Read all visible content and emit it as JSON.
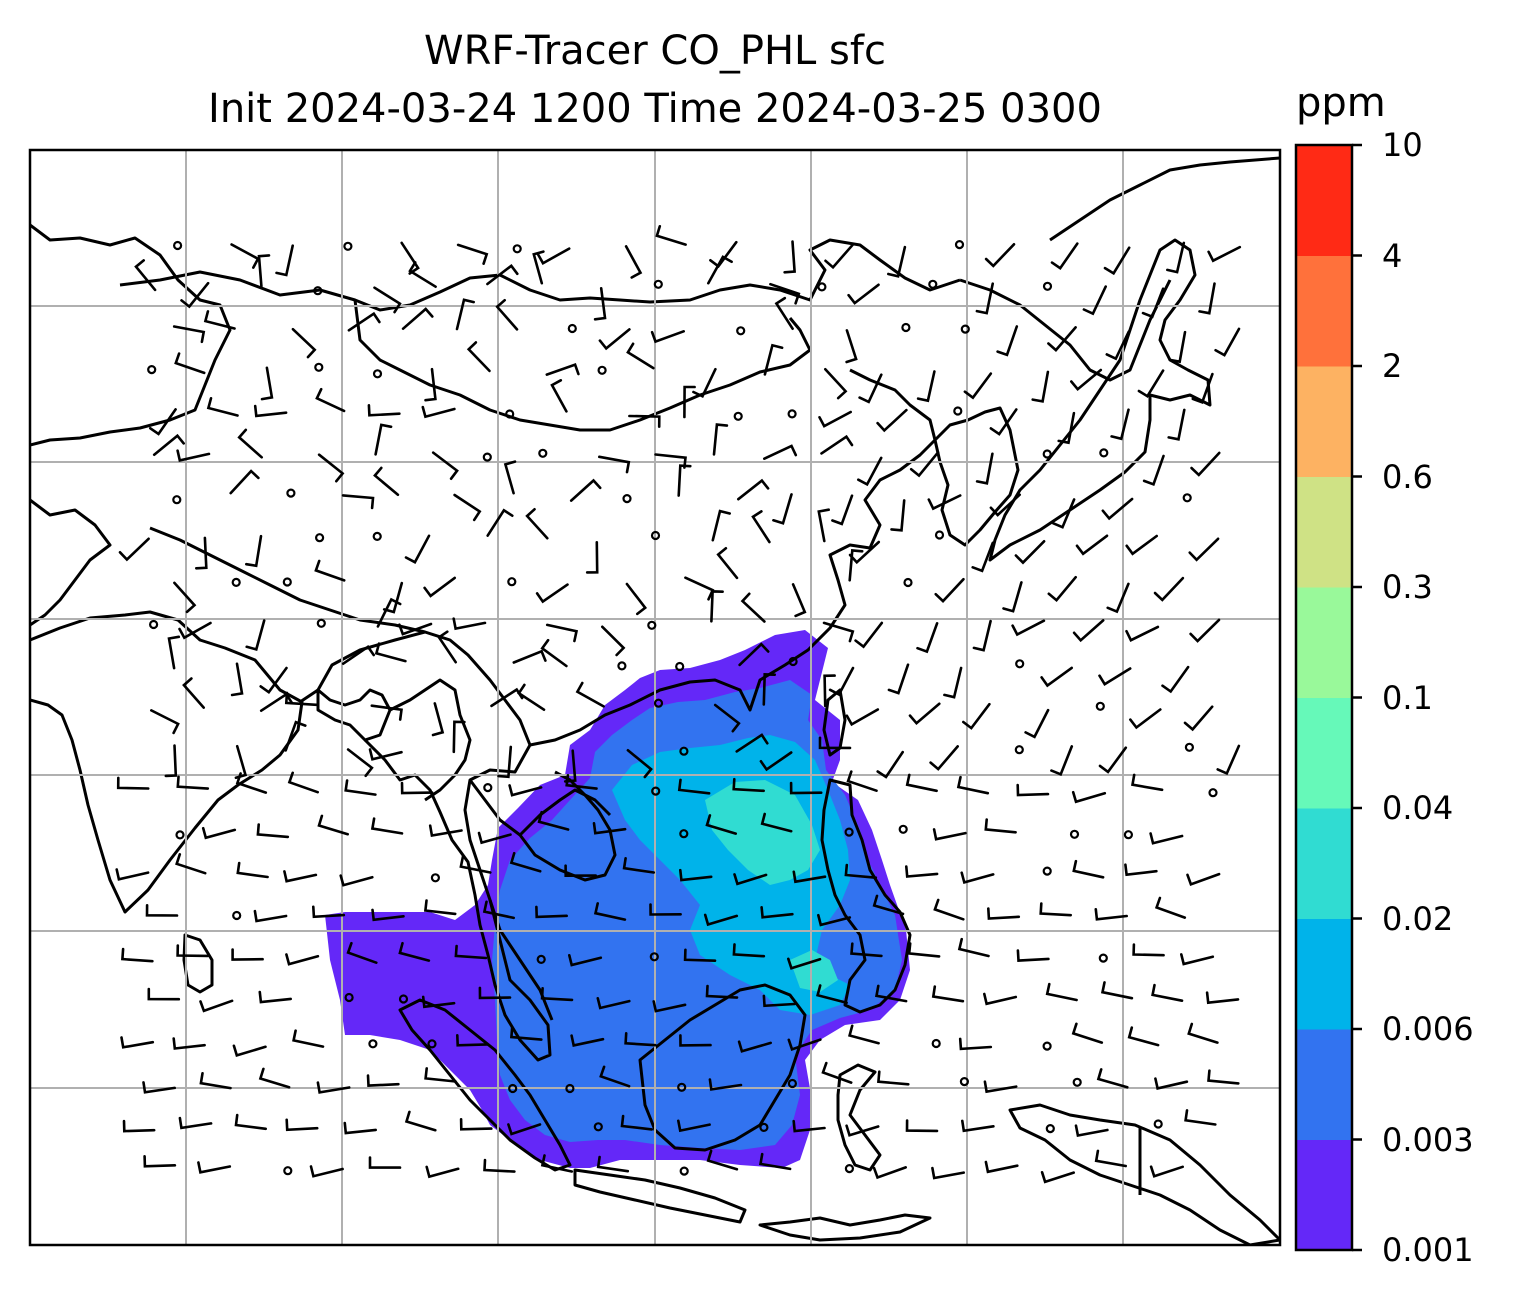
{
  "title": {
    "line1": "WRF-Tracer CO_PHL sfc",
    "line2": "Init 2024-03-24 1200 Time 2024-03-25 0300"
  },
  "colorbar": {
    "units": "ppm",
    "levels": [
      "0.001",
      "0.003",
      "0.006",
      "0.02",
      "0.04",
      "0.1",
      "0.3",
      "0.6",
      "2",
      "4",
      "10"
    ],
    "colors": [
      "#6428f8",
      "#3273f0",
      "#00b3ea",
      "#30dcd2",
      "#66f9b9",
      "#99f99a",
      "#cfe285",
      "#fdb262",
      "#ff713b",
      "#ff2a15"
    ]
  },
  "map": {
    "graticule": "on",
    "field": "CO_PHL tracer concentration",
    "overlays": [
      "coastlines",
      "country borders",
      "wind barbs"
    ]
  }
}
